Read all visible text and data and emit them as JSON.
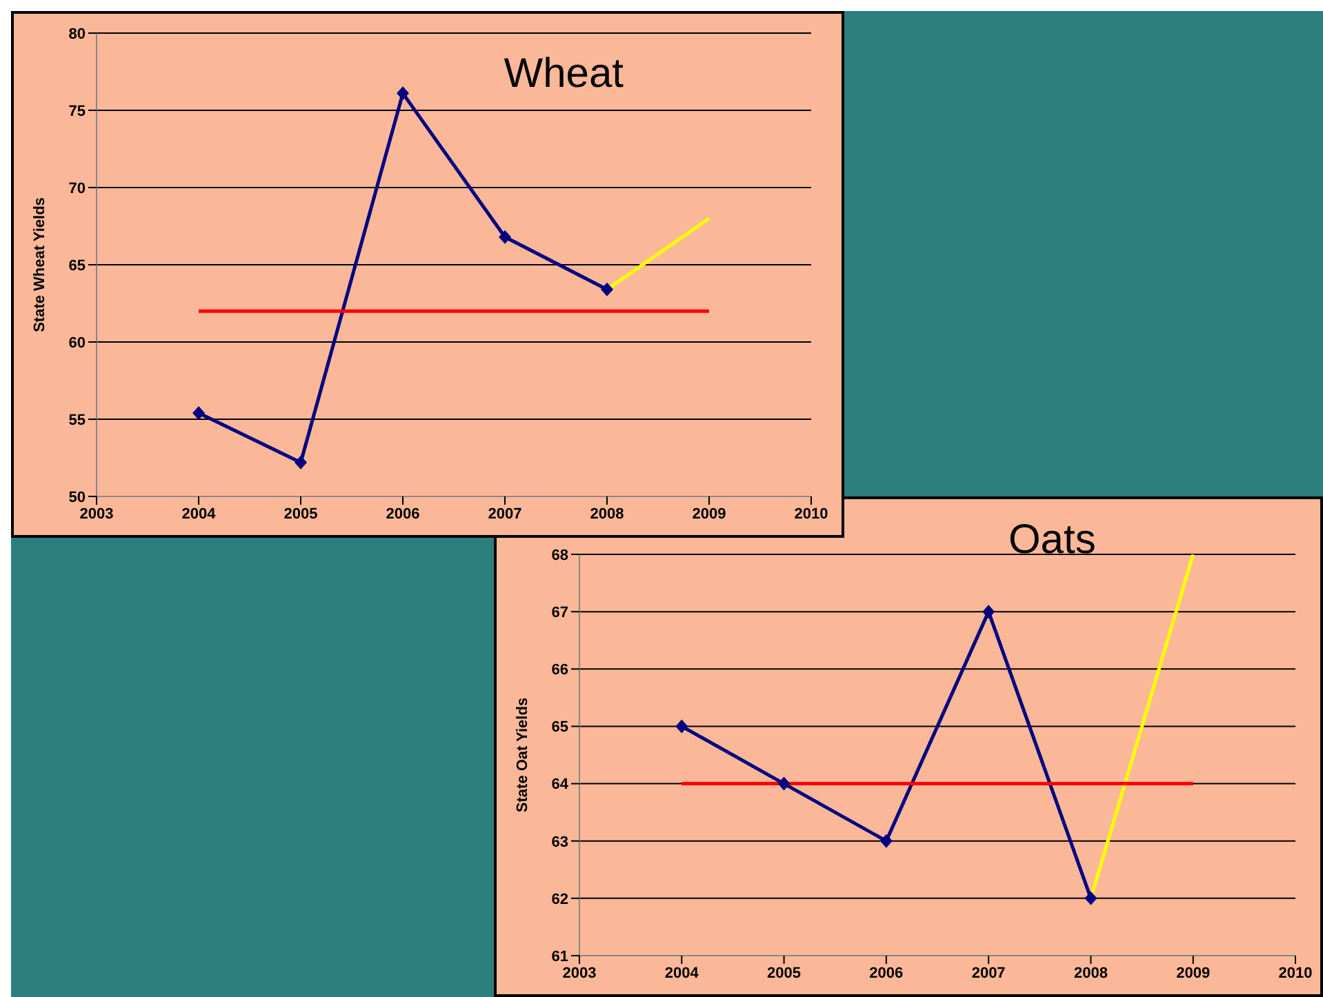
{
  "chart_data": [
    {
      "type": "line",
      "title": "Wheat",
      "ylabel": "State Wheat Yields",
      "xlim": [
        2003,
        2010
      ],
      "xticks": [
        2003,
        2004,
        2005,
        2006,
        2007,
        2008,
        2009,
        2010
      ],
      "ylim": [
        50,
        80
      ],
      "yticks": [
        50,
        55,
        60,
        65,
        70,
        75,
        80
      ],
      "grid": "y",
      "series": [
        {
          "color": "#000080",
          "marker": "diamond",
          "x": [
            2004,
            2005,
            2006,
            2007,
            2008
          ],
          "values": [
            55.4,
            52.2,
            76.1,
            66.8,
            63.4
          ]
        },
        {
          "color": "#ffff00",
          "marker": "none",
          "x": [
            2008,
            2009
          ],
          "values": [
            63.4,
            68
          ]
        },
        {
          "color": "#ff0000",
          "marker": "none",
          "x": [
            2004,
            2009
          ],
          "values": [
            62,
            62
          ]
        }
      ]
    },
    {
      "type": "line",
      "title": "Oats",
      "ylabel": "State Oat Yields",
      "xlim": [
        2003,
        2010
      ],
      "xticks": [
        2003,
        2004,
        2005,
        2006,
        2007,
        2008,
        2009,
        2010
      ],
      "ylim": [
        61,
        68
      ],
      "yticks": [
        61,
        62,
        63,
        64,
        65,
        66,
        67,
        68
      ],
      "grid": "y",
      "series": [
        {
          "color": "#000080",
          "marker": "diamond",
          "x": [
            2004,
            2005,
            2006,
            2007,
            2008
          ],
          "values": [
            65,
            64,
            63,
            67,
            62
          ]
        },
        {
          "color": "#ffff00",
          "marker": "none",
          "x": [
            2008,
            2009
          ],
          "values": [
            62,
            68
          ]
        },
        {
          "color": "#ff0000",
          "marker": "none",
          "x": [
            2004,
            2009
          ],
          "values": [
            64,
            64
          ]
        }
      ]
    }
  ]
}
